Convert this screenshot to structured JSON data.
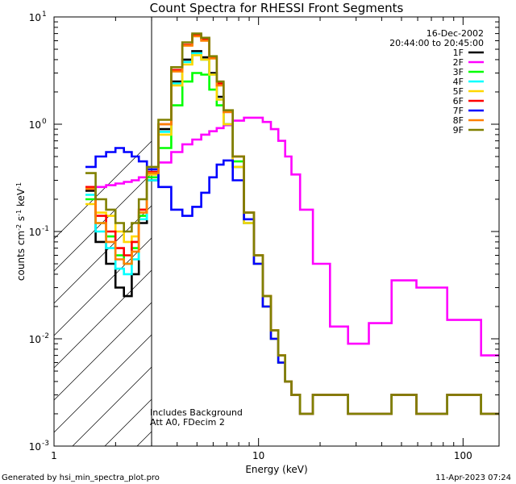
{
  "chart_data": {
    "type": "line",
    "title": "Count Spectra for RHESSI Front Segments",
    "xlabel": "Energy (keV)",
    "ylabel": "counts cm-2 s-1 keV-1",
    "ylabel_parts": {
      "main": "counts cm",
      "e1": "-2",
      "mid1": " s",
      "e2": "-1",
      "mid2": " keV",
      "e3": "-1"
    },
    "xscale": "log",
    "yscale": "log",
    "xlim": [
      1,
      150
    ],
    "ylim": [
      0.001,
      10
    ],
    "x_ticks": [
      {
        "v": 1,
        "label": "1"
      },
      {
        "v": 10,
        "label": "10"
      },
      {
        "v": 100,
        "label": "100"
      }
    ],
    "y_ticks": [
      {
        "v": 0.001,
        "base": "10",
        "exp": "-3"
      },
      {
        "v": 0.01,
        "base": "10",
        "exp": "-2"
      },
      {
        "v": 0.1,
        "base": "10",
        "exp": "-1"
      },
      {
        "v": 1,
        "base": "10",
        "exp": "0"
      },
      {
        "v": 10,
        "base": "10",
        "exp": "1"
      }
    ],
    "date": "16-Dec-2002",
    "time_range": "20:44:00 to 20:45:00",
    "shaded_region": {
      "x_from": 1,
      "x_to": 3
    },
    "annotations": [
      "Includes Background",
      "Att A0, FDecim 2"
    ],
    "series": [
      {
        "name": "1F",
        "color": "#000000",
        "x": [
          1.5,
          1.7,
          1.9,
          2.1,
          2.3,
          2.5,
          2.7,
          3.0,
          3.5,
          4,
          4.5,
          5,
          5.5,
          6,
          6.5,
          7,
          8,
          9,
          10,
          11,
          12,
          13,
          14,
          15,
          17,
          20,
          25,
          30,
          40,
          50,
          70,
          100,
          150
        ],
        "values": [
          0.24,
          0.08,
          0.05,
          0.03,
          0.025,
          0.04,
          0.12,
          0.3,
          0.9,
          2.5,
          4,
          4.8,
          4.2,
          3,
          1.8,
          1,
          0.4,
          0.12,
          0.05,
          0.02,
          0.01,
          0.006,
          0.004,
          0.003,
          0.002,
          0.003,
          0.003,
          0.002,
          0.002,
          0.003,
          0.002,
          0.003,
          0.002
        ]
      },
      {
        "name": "2F",
        "color": "#ff00ff",
        "x": [
          1.5,
          1.7,
          1.9,
          2.1,
          2.3,
          2.5,
          2.7,
          3.0,
          3.5,
          4,
          4.5,
          5,
          5.5,
          6,
          6.5,
          7,
          8,
          9,
          10,
          11,
          12,
          13,
          14,
          15,
          17,
          20,
          25,
          30,
          40,
          50,
          70,
          100,
          150
        ],
        "values": [
          0.25,
          0.26,
          0.27,
          0.28,
          0.29,
          0.3,
          0.32,
          0.34,
          0.44,
          0.55,
          0.65,
          0.72,
          0.8,
          0.86,
          0.92,
          0.98,
          1.08,
          1.15,
          1.15,
          1.05,
          0.9,
          0.7,
          0.5,
          0.34,
          0.16,
          0.05,
          0.013,
          0.009,
          0.014,
          0.035,
          0.03,
          0.015,
          0.007
        ]
      },
      {
        "name": "3F",
        "color": "#00ff00",
        "x": [
          1.5,
          1.7,
          1.9,
          2.1,
          2.3,
          2.5,
          2.7,
          3.0,
          3.5,
          4,
          4.5,
          5,
          5.5,
          6,
          6.5,
          7,
          8,
          9,
          10,
          11,
          12,
          13,
          14,
          15,
          17,
          20,
          25,
          30,
          40,
          50,
          70,
          100,
          150
        ],
        "values": [
          0.2,
          0.12,
          0.09,
          0.06,
          0.05,
          0.07,
          0.14,
          0.32,
          0.6,
          1.5,
          2.5,
          3,
          2.9,
          2.1,
          1.5,
          1,
          0.45,
          0.15,
          0.06,
          0.025,
          0.012,
          0.006,
          0.004,
          0.003,
          0.002,
          0.003,
          0.003,
          0.002,
          0.002,
          0.003,
          0.002,
          0.003,
          0.002
        ]
      },
      {
        "name": "4F",
        "color": "#00ffff",
        "x": [
          1.5,
          1.7,
          1.9,
          2.1,
          2.3,
          2.5,
          2.7,
          3.0,
          3.5,
          4,
          4.5,
          5,
          5.5,
          6,
          6.5,
          7,
          8,
          9,
          10,
          11,
          12,
          13,
          14,
          15,
          17,
          20,
          25,
          30,
          40,
          50,
          70,
          100,
          150
        ],
        "values": [
          0.22,
          0.1,
          0.07,
          0.045,
          0.04,
          0.055,
          0.13,
          0.3,
          0.85,
          2.4,
          3.8,
          4.6,
          4,
          2.9,
          1.7,
          1,
          0.4,
          0.12,
          0.05,
          0.02,
          0.01,
          0.006,
          0.004,
          0.003,
          0.002,
          0.003,
          0.003,
          0.002,
          0.002,
          0.003,
          0.002,
          0.003,
          0.002
        ]
      },
      {
        "name": "5F",
        "color": "#ffd700",
        "x": [
          1.5,
          1.7,
          1.9,
          2.1,
          2.3,
          2.5,
          2.7,
          3.0,
          3.5,
          4,
          4.5,
          5,
          5.5,
          6,
          6.5,
          7,
          8,
          9,
          10,
          11,
          12,
          13,
          14,
          15,
          17,
          20,
          25,
          30,
          40,
          50,
          70,
          100,
          150
        ],
        "values": [
          0.18,
          0.15,
          0.14,
          0.1,
          0.08,
          0.09,
          0.16,
          0.34,
          0.8,
          2.3,
          3.6,
          4.4,
          4,
          2.9,
          1.7,
          1,
          0.4,
          0.12,
          0.05,
          0.02,
          0.01,
          0.006,
          0.004,
          0.003,
          0.002,
          0.003,
          0.003,
          0.002,
          0.002,
          0.003,
          0.002,
          0.003,
          0.002
        ]
      },
      {
        "name": "6F",
        "color": "#ff0000",
        "x": [
          1.5,
          1.7,
          1.9,
          2.1,
          2.3,
          2.5,
          2.7,
          3.0,
          3.5,
          4,
          4.5,
          5,
          5.5,
          6,
          6.5,
          7,
          8,
          9,
          10,
          11,
          12,
          13,
          14,
          15,
          17,
          20,
          25,
          30,
          40,
          50,
          70,
          100,
          150
        ],
        "values": [
          0.26,
          0.14,
          0.1,
          0.07,
          0.06,
          0.08,
          0.16,
          0.36,
          1,
          3.2,
          5.5,
          6.8,
          6.2,
          4.2,
          2.4,
          1.3,
          0.5,
          0.15,
          0.06,
          0.025,
          0.012,
          0.007,
          0.004,
          0.003,
          0.002,
          0.003,
          0.003,
          0.002,
          0.002,
          0.003,
          0.002,
          0.003,
          0.002
        ]
      },
      {
        "name": "7F",
        "color": "#0000ff",
        "x": [
          1.5,
          1.7,
          1.9,
          2.1,
          2.3,
          2.5,
          2.7,
          3.0,
          3.5,
          4,
          4.5,
          5,
          5.5,
          6,
          6.5,
          7,
          8,
          9,
          10,
          11,
          12,
          13,
          14,
          15,
          17,
          20,
          25,
          30,
          40,
          50,
          70,
          100,
          150
        ],
        "values": [
          0.4,
          0.5,
          0.55,
          0.6,
          0.55,
          0.5,
          0.45,
          0.38,
          0.26,
          0.16,
          0.14,
          0.17,
          0.23,
          0.32,
          0.42,
          0.46,
          0.3,
          0.13,
          0.05,
          0.02,
          0.01,
          0.006,
          0.004,
          0.003,
          0.002,
          0.003,
          0.003,
          0.002,
          0.002,
          0.003,
          0.002,
          0.003,
          0.002
        ]
      },
      {
        "name": "8F",
        "color": "#ff8000",
        "x": [
          1.5,
          1.7,
          1.9,
          2.1,
          2.3,
          2.5,
          2.7,
          3.0,
          3.5,
          4,
          4.5,
          5,
          5.5,
          6,
          6.5,
          7,
          8,
          9,
          10,
          11,
          12,
          13,
          14,
          15,
          17,
          20,
          25,
          30,
          40,
          50,
          70,
          100,
          150
        ],
        "values": [
          0.25,
          0.12,
          0.08,
          0.055,
          0.05,
          0.065,
          0.15,
          0.35,
          1,
          3.1,
          5.4,
          6.6,
          6,
          4.1,
          2.3,
          1.3,
          0.5,
          0.15,
          0.06,
          0.025,
          0.012,
          0.007,
          0.004,
          0.003,
          0.002,
          0.003,
          0.003,
          0.002,
          0.002,
          0.003,
          0.002,
          0.003,
          0.002
        ]
      },
      {
        "name": "9F",
        "color": "#808000",
        "x": [
          1.5,
          1.7,
          1.9,
          2.1,
          2.3,
          2.5,
          2.7,
          3.0,
          3.5,
          4,
          4.5,
          5,
          5.5,
          6,
          6.5,
          7,
          8,
          9,
          10,
          11,
          12,
          13,
          14,
          15,
          17,
          20,
          25,
          30,
          40,
          50,
          70,
          100,
          150
        ],
        "values": [
          0.35,
          0.2,
          0.16,
          0.12,
          0.1,
          0.12,
          0.2,
          0.4,
          1.1,
          3.4,
          5.8,
          7,
          6.4,
          4.3,
          2.5,
          1.35,
          0.5,
          0.15,
          0.06,
          0.025,
          0.012,
          0.007,
          0.004,
          0.003,
          0.002,
          0.003,
          0.003,
          0.002,
          0.002,
          0.003,
          0.002,
          0.003,
          0.002
        ]
      }
    ]
  },
  "footer": {
    "left": "Generated by hsi_min_spectra_plot.pro",
    "right": "11-Apr-2023 07:24"
  }
}
